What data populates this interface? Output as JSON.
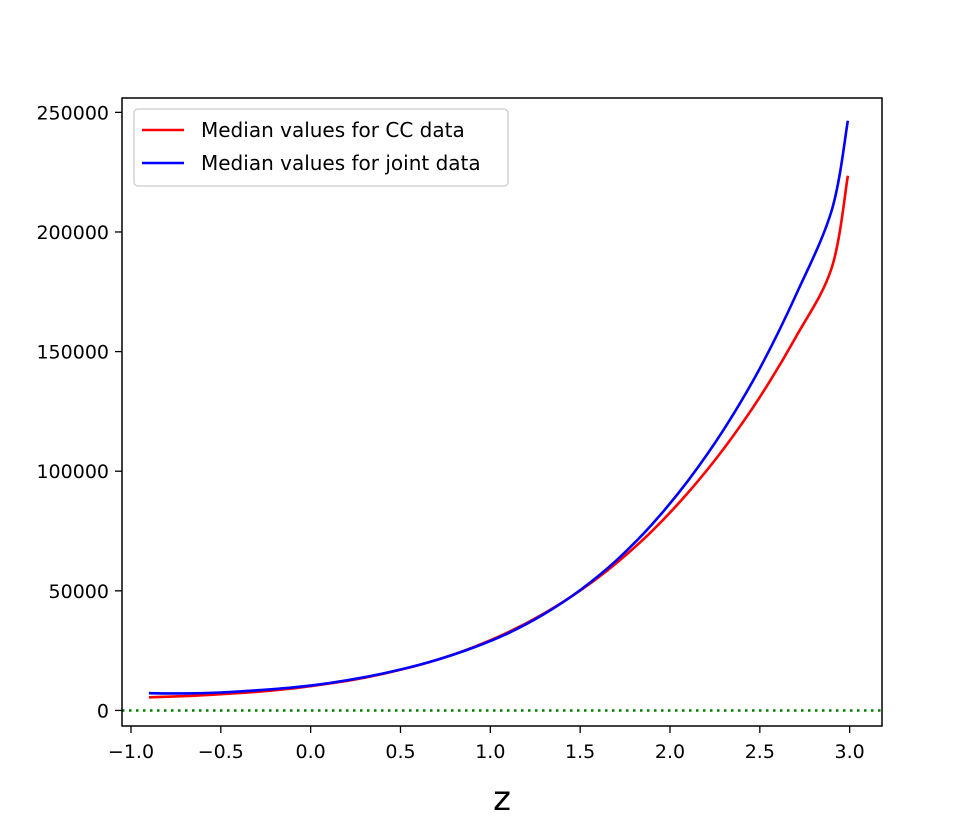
{
  "chart_data": {
    "type": "line",
    "title": "",
    "xlabel": "z",
    "ylabel": "",
    "xlim": [
      -1.05,
      3.18
    ],
    "ylim": [
      -6500,
      256000
    ],
    "xticks": [
      -1.0,
      -0.5,
      0.0,
      0.5,
      1.0,
      1.5,
      2.0,
      2.5,
      3.0
    ],
    "xtick_labels": [
      "−1.0",
      "−0.5",
      "0.0",
      "0.5",
      "1.0",
      "1.5",
      "2.0",
      "2.5",
      "3.0"
    ],
    "yticks": [
      0,
      50000,
      100000,
      150000,
      200000,
      250000
    ],
    "ytick_labels": [
      "0",
      "50000",
      "100000",
      "150000",
      "200000",
      "250000"
    ],
    "grid": false,
    "legend_position": "top-left",
    "reference_line": {
      "y": 0,
      "style": "dotted",
      "color": "#008000"
    },
    "series": [
      {
        "name": "Median values for CC data",
        "color": "#ff0000",
        "x": [
          -0.9,
          -0.7,
          -0.5,
          -0.3,
          -0.1,
          0.1,
          0.3,
          0.5,
          0.7,
          0.9,
          1.1,
          1.3,
          1.5,
          1.7,
          1.9,
          2.1,
          2.3,
          2.5,
          2.7,
          2.9,
          2.99
        ],
        "y": [
          5500,
          6000,
          6800,
          7800,
          9200,
          11200,
          13700,
          17000,
          21100,
          26300,
          32700,
          40600,
          50100,
          61500,
          75000,
          91000,
          109500,
          131000,
          156000,
          185000,
          223500
        ]
      },
      {
        "name": "Median values for joint data",
        "color": "#0000ff",
        "x": [
          -0.9,
          -0.7,
          -0.5,
          -0.3,
          -0.1,
          0.1,
          0.3,
          0.5,
          0.7,
          0.9,
          1.1,
          1.3,
          1.5,
          1.7,
          1.9,
          2.1,
          2.3,
          2.5,
          2.7,
          2.9,
          2.99
        ],
        "y": [
          7200,
          7100,
          7500,
          8400,
          9600,
          11400,
          13900,
          17100,
          21100,
          26100,
          32300,
          40300,
          50300,
          62600,
          77800,
          96000,
          117500,
          143000,
          173500,
          209000,
          246500
        ]
      }
    ]
  }
}
